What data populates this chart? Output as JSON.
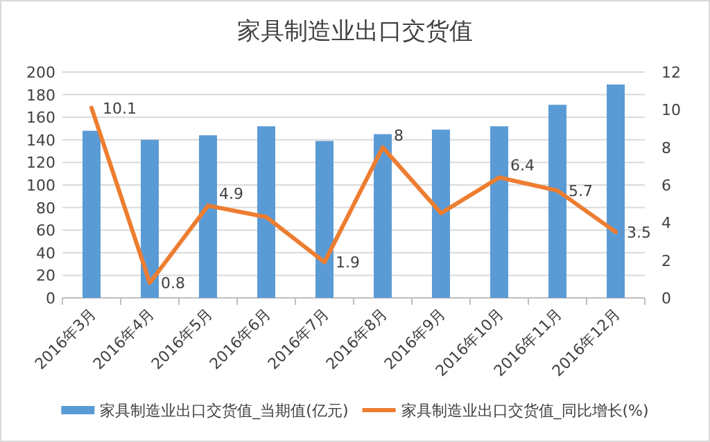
{
  "chart_data": {
    "type": "bar",
    "title": "家具制造业出口交货值",
    "categories": [
      "2016年3月",
      "2016年4月",
      "2016年5月",
      "2016年6月",
      "2016年7月",
      "2016年8月",
      "2016年9月",
      "2016年10月",
      "2016年11月",
      "2016年12月"
    ],
    "series": [
      {
        "name": "家具制造业出口交货值_当期值(亿元)",
        "color": "#5b9bd5",
        "values": [
          148,
          140,
          144,
          152,
          139,
          145,
          149,
          152,
          171,
          189
        ]
      },
      {
        "name": "家具制造业出口交货值_同比增长(%)",
        "color": "#ed7d31",
        "type": "line",
        "axis": "y2",
        "values": [
          10.1,
          0.8,
          4.9,
          4.3,
          1.9,
          8,
          4.5,
          6.4,
          5.7,
          3.5
        ],
        "value_labels": [
          "10.1",
          "0.8",
          "4.9",
          null,
          "1.9",
          "8",
          null,
          "6.4",
          "5.7",
          "3.5"
        ]
      }
    ],
    "ylim": [
      0,
      200
    ],
    "yticks": [
      0,
      20,
      40,
      60,
      80,
      100,
      120,
      140,
      160,
      180,
      200
    ],
    "y2lim": [
      0,
      12
    ],
    "y2ticks": [
      0,
      2,
      4,
      6,
      8,
      10,
      12
    ],
    "grid": "y",
    "legend": "bottom"
  }
}
